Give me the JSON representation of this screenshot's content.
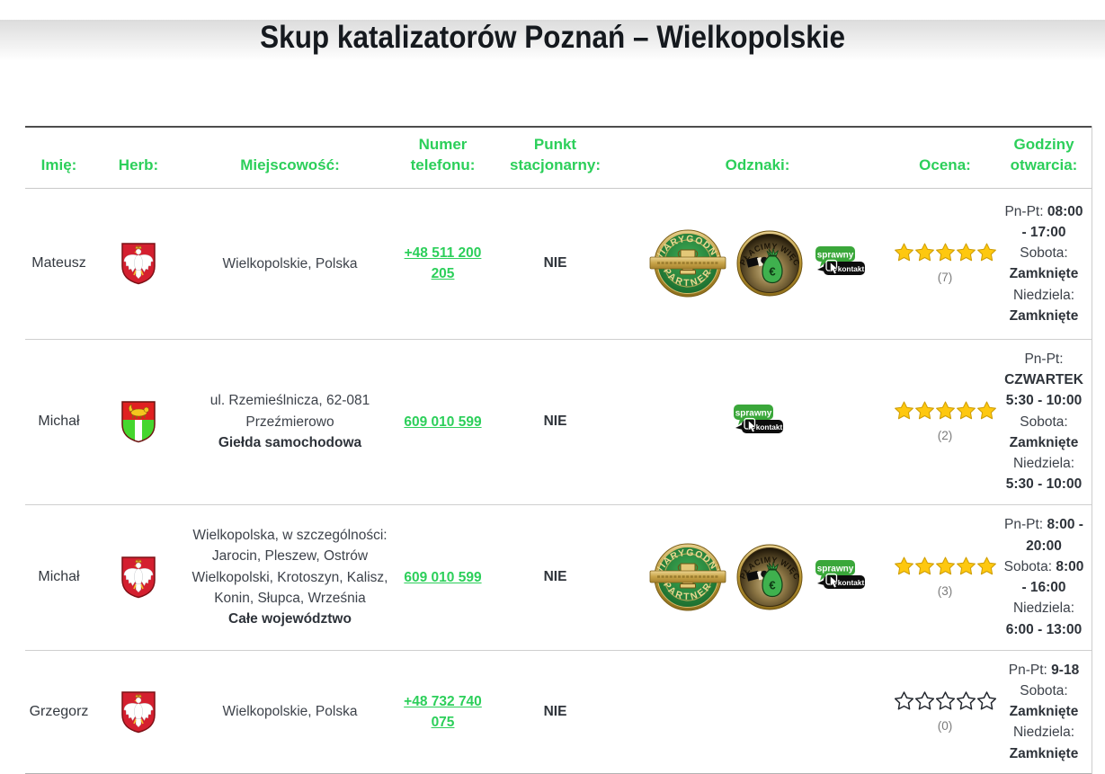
{
  "page": {
    "title": "Skup katalizatorów Poznań – Wielkopolskie"
  },
  "colors": {
    "accent_green": "#2ccf5a",
    "link_green": "#2ccf5a",
    "star_gold": "#fec80f",
    "text_dark": "#3d424a"
  },
  "badges_text": {
    "wp_top": "WIARYGODNY",
    "wp_bottom": "PARTNER",
    "zw_arc": "ZAPŁACIMY WIĘCEJ",
    "zw_symbol": "€",
    "sk_top": "sprawny",
    "sk_bottom": "kontakt"
  },
  "table": {
    "headers": {
      "name": "Imię:",
      "crest": "Herb:",
      "city": "Miejscowość:",
      "phone": "Numer telefonu:",
      "stationary": "Punkt stacjonarny:",
      "badges": "Odznaki:",
      "rating": "Ocena:",
      "hours": "Godziny otwarcia:"
    },
    "rows": [
      {
        "name": "Mateusz",
        "herb": "wielkopolskie",
        "city": "Wielkopolskie, Polska",
        "city_bold": "",
        "phone": "+48 511 200 205",
        "stationary": "NIE",
        "badges": [
          "wiarygodny-partner",
          "zaplacimy-wiecej",
          "sprawny-kontakt"
        ],
        "rating": {
          "stars": 5,
          "count": "(7)"
        },
        "hours": [
          {
            "label": "Pn-Pt:",
            "value": "08:00 - 17:00"
          },
          {
            "label": "Sobota:",
            "value": "Zamknięte"
          },
          {
            "label": "Niedziela:",
            "value": "Zamknięte"
          }
        ]
      },
      {
        "name": "Michał",
        "herb": "przezmierowo",
        "city": "ul. Rzemieślnicza, 62-081 Przeźmierowo",
        "city_bold": "Giełda samochodowa",
        "phone": "609 010 599",
        "stationary": "NIE",
        "badges": [
          "sprawny-kontakt"
        ],
        "rating": {
          "stars": 5,
          "count": "(2)"
        },
        "hours": [
          {
            "label": "Pn-Pt:",
            "value": "CZWARTEK 5:30 - 10:00"
          },
          {
            "label": "Sobota:",
            "value": "Zamknięte"
          },
          {
            "label": "Niedziela:",
            "value": "5:30 - 10:00"
          }
        ]
      },
      {
        "name": "Michał",
        "herb": "wielkopolskie",
        "city": "Wielkopolska, w szczególności: Jarocin, Pleszew, Ostrów Wielkopolski, Krotoszyn, Kalisz, Konin, Słupca, Września",
        "city_bold": "Całe województwo",
        "phone": "609 010 599",
        "stationary": "NIE",
        "badges": [
          "wiarygodny-partner",
          "zaplacimy-wiecej",
          "sprawny-kontakt"
        ],
        "rating": {
          "stars": 5,
          "count": "(3)"
        },
        "hours": [
          {
            "label": "Pn-Pt:",
            "value": "8:00 - 20:00"
          },
          {
            "label": "Sobota:",
            "value": "8:00 - 16:00"
          },
          {
            "label": "Niedziela:",
            "value": "6:00 - 13:00"
          }
        ]
      },
      {
        "name": "Grzegorz",
        "herb": "wielkopolskie",
        "city": "Wielkopolskie, Polska",
        "city_bold": "",
        "phone": "+48 732 740 075",
        "stationary": "NIE",
        "badges": [],
        "rating": {
          "stars": 0,
          "count": "(0)"
        },
        "hours": [
          {
            "label": "Pn-Pt:",
            "value": "9-18"
          },
          {
            "label": "Sobota:",
            "value": "Zamknięte"
          },
          {
            "label": "Niedziela:",
            "value": "Zamknięte"
          }
        ]
      }
    ]
  }
}
